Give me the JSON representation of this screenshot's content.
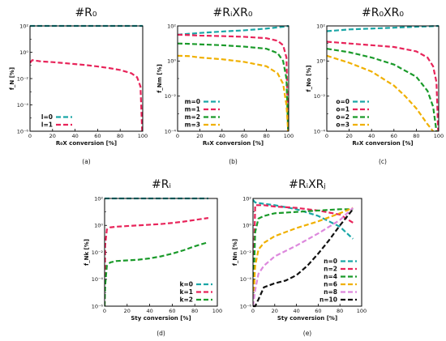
{
  "chart_data": [
    {
      "id": "a",
      "type": "line",
      "title": "#R₀",
      "xlabel": "R₀X conversion [%]",
      "ylabel": "f_N [%]",
      "caption": "(a)",
      "xlim": [
        0,
        100
      ],
      "ylim_log10": [
        -6,
        2
      ],
      "xticks": [
        "0",
        "20",
        "40",
        "60",
        "80",
        "100"
      ],
      "yticks": [
        "10⁻⁶",
        "10⁻⁴",
        "10⁻²",
        "10⁰",
        "10²"
      ],
      "legend_position": "bottom-left",
      "series": [
        {
          "name": "l=0",
          "color": "#1aa6a6",
          "x": [
            0,
            20,
            40,
            60,
            80,
            95,
            99,
            100
          ],
          "log10_y": [
            2,
            2,
            2,
            2,
            2,
            2,
            2,
            2
          ]
        },
        {
          "name": "l=1",
          "color": "#e8245a",
          "x": [
            0,
            2,
            10,
            20,
            30,
            40,
            50,
            60,
            70,
            80,
            90,
            95,
            98,
            99.5
          ],
          "log10_y": [
            -0.8,
            -0.6,
            -0.7,
            -0.75,
            -0.82,
            -0.9,
            -0.98,
            -1.08,
            -1.2,
            -1.35,
            -1.6,
            -1.9,
            -2.6,
            -6
          ]
        }
      ]
    },
    {
      "id": "b",
      "type": "line",
      "title": "#RᵢXR₀",
      "xlabel": "R₀X conversion [%]",
      "ylabel": "f_Nm [%]",
      "caption": "(b)",
      "xlim": [
        0,
        100
      ],
      "ylim_log10": [
        -4,
        2
      ],
      "xticks": [
        "0",
        "20",
        "40",
        "60",
        "80",
        "100"
      ],
      "yticks": [
        "10⁻⁴",
        "10⁻²",
        "10⁰",
        "10²"
      ],
      "legend_position": "bottom-left",
      "series": [
        {
          "name": "m=0",
          "color": "#1aa6a6",
          "x": [
            0,
            10,
            20,
            40,
            60,
            80,
            95,
            100
          ],
          "log10_y": [
            1.5,
            1.55,
            1.6,
            1.68,
            1.75,
            1.85,
            1.95,
            2
          ]
        },
        {
          "name": "m=1",
          "color": "#e8245a",
          "x": [
            0,
            10,
            20,
            40,
            60,
            80,
            90,
            95,
            98,
            99.5
          ],
          "log10_y": [
            1.5,
            1.48,
            1.45,
            1.42,
            1.38,
            1.3,
            1.15,
            0.9,
            0.2,
            -4
          ]
        },
        {
          "name": "m=2",
          "color": "#1a9a2a",
          "x": [
            0,
            10,
            20,
            40,
            60,
            80,
            90,
            95,
            98,
            99.5
          ],
          "log10_y": [
            1.0,
            0.98,
            0.95,
            0.9,
            0.82,
            0.7,
            0.45,
            0.0,
            -1.0,
            -4
          ]
        },
        {
          "name": "m=3",
          "color": "#f0b000",
          "x": [
            0,
            10,
            20,
            40,
            60,
            80,
            90,
            95,
            98,
            99.5
          ],
          "log10_y": [
            0.3,
            0.28,
            0.2,
            0.1,
            -0.05,
            -0.3,
            -0.7,
            -1.3,
            -2.5,
            -4
          ]
        }
      ]
    },
    {
      "id": "c",
      "type": "line",
      "title": "#R₀XR₀",
      "xlabel": "R₀X conversion [%]",
      "ylabel": "f_No [%]",
      "caption": "(c)",
      "xlim": [
        0,
        100
      ],
      "ylim_log10": [
        -4,
        2
      ],
      "xticks": [
        "0",
        "20",
        "40",
        "60",
        "80",
        "100"
      ],
      "yticks": [
        "10⁻⁴",
        "10⁻²",
        "10⁰",
        "10²"
      ],
      "legend_position": "bottom-left",
      "series": [
        {
          "name": "o=0",
          "color": "#1aa6a6",
          "x": [
            0,
            10,
            20,
            40,
            60,
            80,
            100
          ],
          "log10_y": [
            1.7,
            1.75,
            1.8,
            1.85,
            1.9,
            1.95,
            2
          ]
        },
        {
          "name": "o=1",
          "color": "#e8245a",
          "x": [
            0,
            10,
            20,
            40,
            60,
            80,
            90,
            95,
            98,
            99.5
          ],
          "log10_y": [
            1.1,
            1.05,
            1.0,
            0.9,
            0.8,
            0.55,
            0.2,
            -0.3,
            -1.2,
            -4
          ]
        },
        {
          "name": "o=2",
          "color": "#1a9a2a",
          "x": [
            0,
            10,
            20,
            40,
            60,
            80,
            90,
            95,
            98
          ],
          "log10_y": [
            0.7,
            0.6,
            0.5,
            0.2,
            -0.2,
            -0.9,
            -1.7,
            -2.6,
            -4
          ]
        },
        {
          "name": "o=3",
          "color": "#f0b000",
          "x": [
            0,
            10,
            20,
            40,
            60,
            70,
            80,
            90,
            95
          ],
          "log10_y": [
            0.3,
            0.1,
            -0.1,
            -0.6,
            -1.4,
            -2.0,
            -2.7,
            -3.6,
            -4
          ]
        }
      ]
    },
    {
      "id": "d",
      "type": "line",
      "title": "#Rᵢ",
      "xlabel": "Sty conversion [%]",
      "ylabel": "f_Nk [%]",
      "caption": "(d)",
      "xlim": [
        0,
        100
      ],
      "ylim_log10": [
        -6,
        2
      ],
      "xticks": [
        "0",
        "20",
        "40",
        "60",
        "80",
        "100"
      ],
      "yticks": [
        "10⁻⁶",
        "10⁻⁴",
        "10⁻²",
        "10⁰",
        "10²"
      ],
      "legend_position": "bottom-right",
      "series": [
        {
          "name": "k=0",
          "color": "#1aa6a6",
          "x": [
            0,
            20,
            40,
            60,
            80,
            92
          ],
          "log10_y": [
            2,
            2,
            2,
            2,
            2,
            2
          ]
        },
        {
          "name": "k=1",
          "color": "#e8245a",
          "x": [
            0,
            0.5,
            2,
            5,
            10,
            20,
            30,
            40,
            50,
            60,
            70,
            80,
            92
          ],
          "log10_y": [
            -6,
            -1.5,
            -0.3,
            -0.15,
            -0.1,
            -0.05,
            0.0,
            0.05,
            0.1,
            0.18,
            0.28,
            0.4,
            0.55
          ]
        },
        {
          "name": "k=2",
          "color": "#1a9a2a",
          "x": [
            0,
            0.5,
            2,
            5,
            10,
            20,
            30,
            40,
            50,
            60,
            70,
            80,
            92
          ],
          "log10_y": [
            -6,
            -4.5,
            -3.0,
            -2.75,
            -2.65,
            -2.6,
            -2.55,
            -2.45,
            -2.3,
            -2.1,
            -1.85,
            -1.55,
            -1.25
          ]
        }
      ]
    },
    {
      "id": "e",
      "type": "line",
      "title": "#RᵢXRⱼ",
      "xlabel": "Sty conversion [%]",
      "ylabel": "f_Nn [%]",
      "caption": "(e)",
      "xlim": [
        0,
        100
      ],
      "ylim_log10": [
        -6,
        2
      ],
      "xticks": [
        "0",
        "20",
        "40",
        "60",
        "80",
        "100"
      ],
      "yticks": [
        "10⁻⁶",
        "10⁻⁴",
        "10⁻²",
        "10⁰",
        "10²"
      ],
      "legend_position": "bottom-right",
      "series": [
        {
          "name": "n=0",
          "color": "#1aa6a6",
          "x": [
            0,
            2,
            10,
            20,
            40,
            60,
            80,
            92
          ],
          "log10_y": [
            1.9,
            1.7,
            1.6,
            1.5,
            1.2,
            0.7,
            -0.1,
            -1.0
          ]
        },
        {
          "name": "n=2",
          "color": "#e8245a",
          "x": [
            0,
            2,
            10,
            20,
            40,
            60,
            80,
            92
          ],
          "log10_y": [
            -6,
            1.5,
            1.5,
            1.4,
            1.3,
            1.1,
            0.8,
            0.2
          ]
        },
        {
          "name": "n=4",
          "color": "#1a9a2a",
          "x": [
            0,
            2,
            5,
            10,
            20,
            40,
            60,
            80,
            92
          ],
          "log10_y": [
            -6,
            -0.5,
            0.5,
            0.7,
            0.9,
            1.0,
            1.1,
            1.2,
            1.2
          ]
        },
        {
          "name": "n=6",
          "color": "#f0b000",
          "x": [
            0,
            2,
            5,
            10,
            20,
            40,
            60,
            80,
            92
          ],
          "log10_y": [
            -6,
            -3.0,
            -1.8,
            -1.3,
            -0.8,
            -0.2,
            0.3,
            0.9,
            1.3
          ]
        },
        {
          "name": "n=8",
          "color": "#dd88dd",
          "x": [
            0,
            2,
            5,
            10,
            20,
            40,
            60,
            80,
            92
          ],
          "log10_y": [
            -6,
            -4.8,
            -3.6,
            -3.0,
            -2.3,
            -1.5,
            -0.6,
            0.4,
            1.3
          ]
        },
        {
          "name": "n=10",
          "color": "#111111",
          "x": [
            0,
            2,
            5,
            10,
            20,
            30,
            40,
            50,
            60,
            70,
            80,
            92
          ],
          "log10_y": [
            -6,
            -6,
            -5.5,
            -4.6,
            -4.3,
            -4.1,
            -3.7,
            -3.0,
            -2.1,
            -1.1,
            0.0,
            1.2
          ]
        }
      ]
    }
  ]
}
